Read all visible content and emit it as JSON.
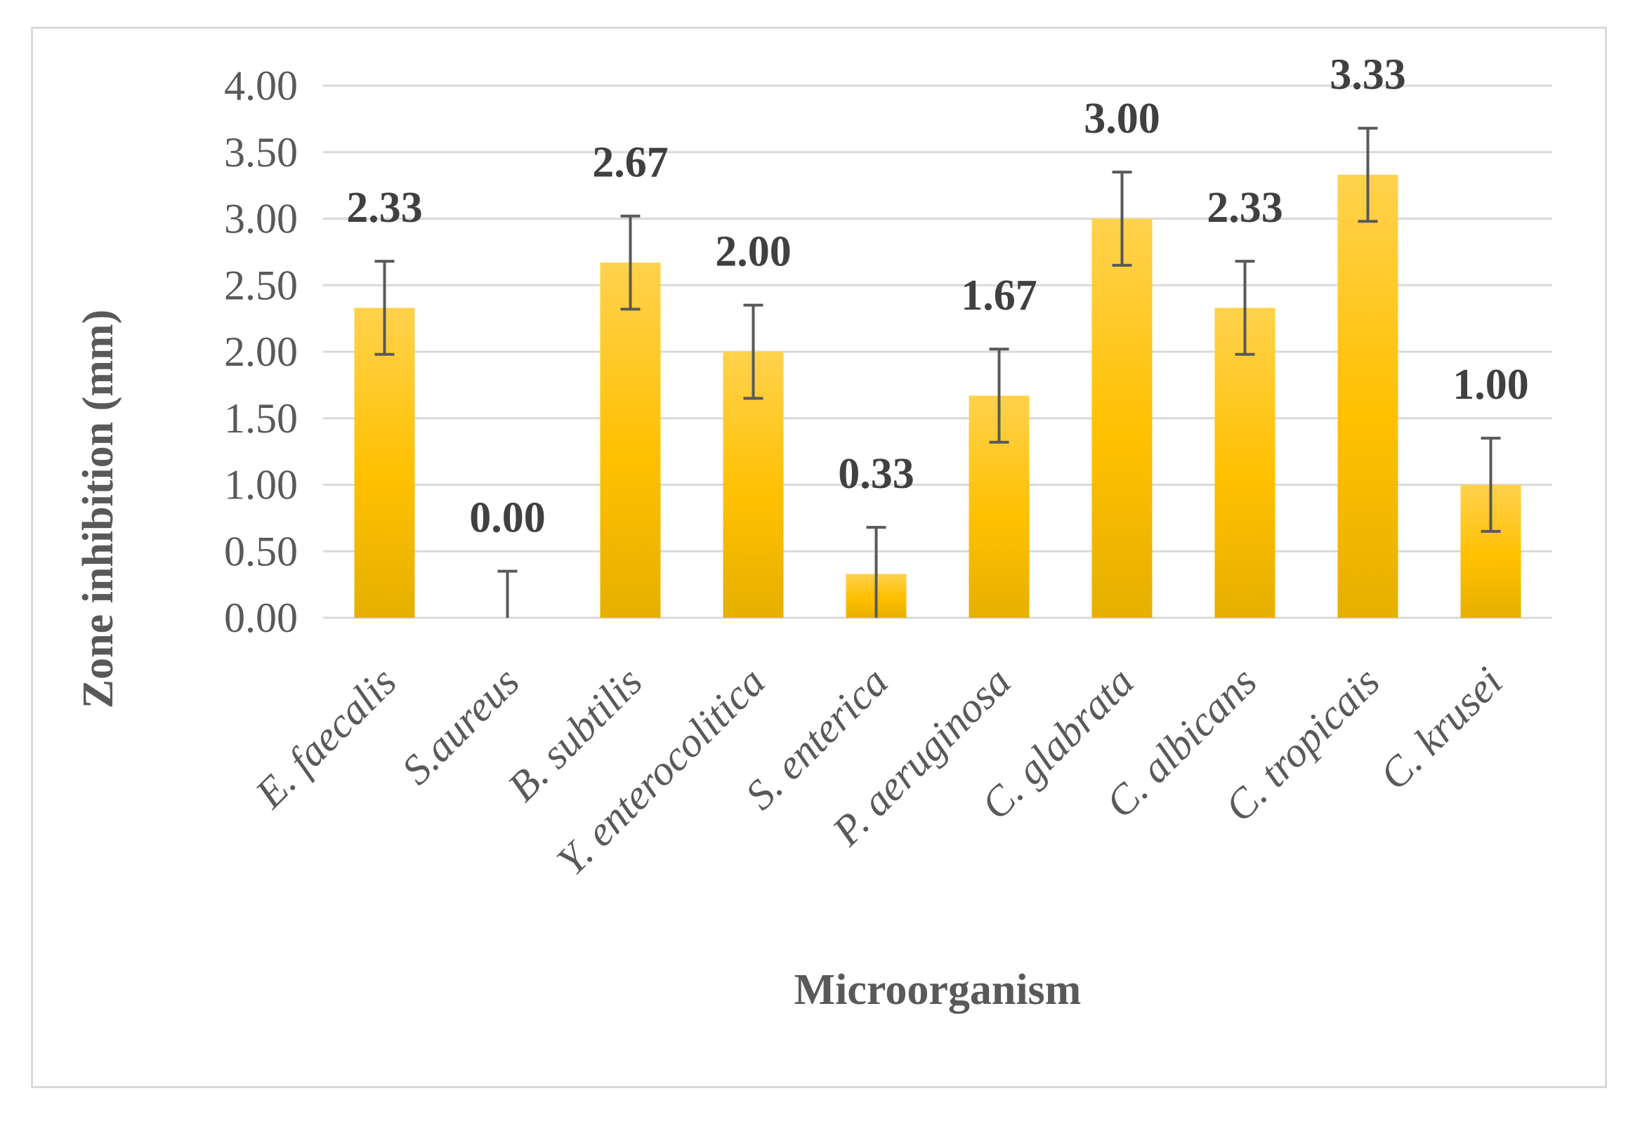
{
  "chart_data": {
    "type": "bar",
    "title": "",
    "xlabel": "Microorganism",
    "ylabel": "Zone inhibition (mm)",
    "ylim": [
      0,
      4
    ],
    "ytick_step": 0.5,
    "ytick_labels": [
      "0.00",
      "0.50",
      "1.00",
      "1.50",
      "2.00",
      "2.50",
      "3.00",
      "3.50",
      "4.00"
    ],
    "grid": true,
    "legend": "none",
    "categories": [
      "E. faecalis",
      "S.aureus",
      "B. subtilis",
      "Y. enterocolitica",
      "S. enterica",
      "P. aeruginosa",
      "C. glabrata",
      "C. albicans",
      "C. tropicais",
      "C. krusei"
    ],
    "values": [
      2.33,
      0.0,
      2.67,
      2.0,
      0.33,
      1.67,
      3.0,
      2.33,
      3.33,
      1.0
    ],
    "value_labels": [
      "2.33",
      "0.00",
      "2.67",
      "2.00",
      "0.33",
      "1.67",
      "3.00",
      "2.33",
      "3.33",
      "1.00"
    ],
    "error": [
      0.35,
      0.35,
      0.35,
      0.35,
      0.35,
      0.35,
      0.35,
      0.35,
      0.35,
      0.35
    ],
    "colors": {
      "bar_top": "#ffd24d",
      "bar_mid": "#ffc000",
      "bar_bottom": "#e6b000",
      "error_bar": "#595959",
      "leader_line": "#a6a6a6",
      "grid": "#d9d9d9"
    }
  }
}
